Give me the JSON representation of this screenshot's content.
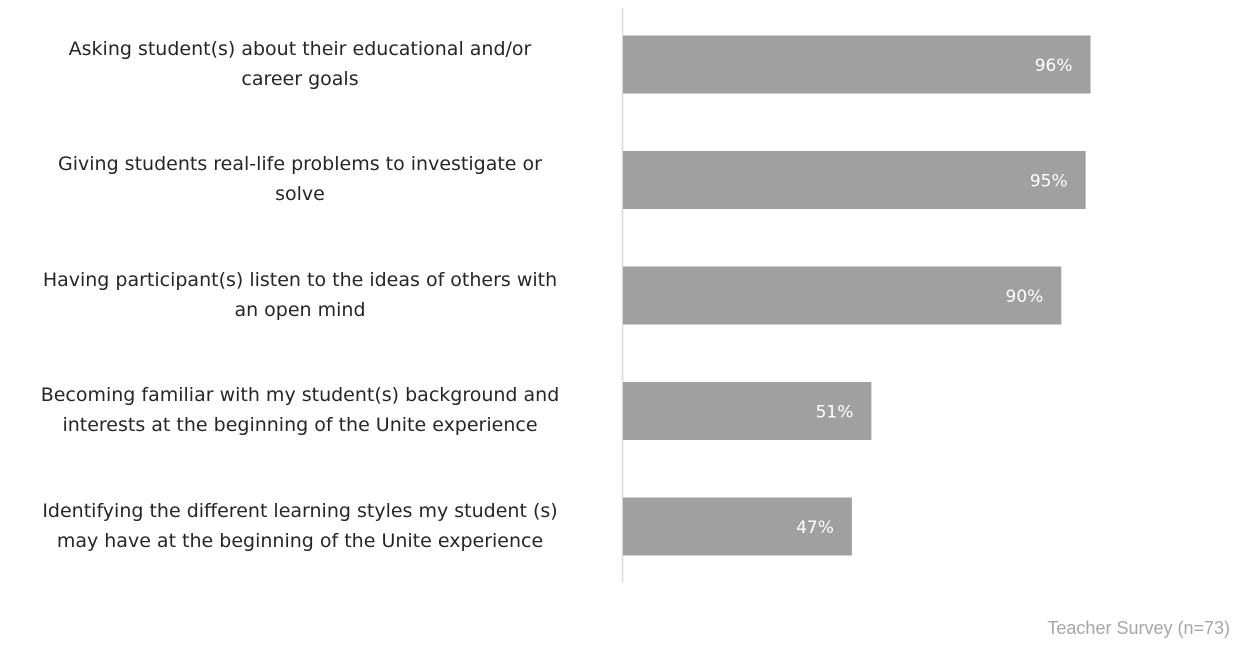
{
  "chart_data": {
    "type": "bar",
    "orientation": "horizontal",
    "categories": [
      "Asking student(s) about their educational and/or career goals",
      "Giving students real-life problems to investigate or solve",
      "Having participant(s) listen to the ideas of others with an open mind",
      "Becoming familiar with my student(s) background and interests at the beginning of the Unite experience",
      "Identifying the different learning styles my student (s) may have at the beginning of the Unite experience"
    ],
    "category_lines": [
      [
        "Asking student(s) about their educational and/or",
        "career goals"
      ],
      [
        "Giving students real-life problems to investigate or",
        "solve"
      ],
      [
        "Having participant(s) listen to the ideas of others with",
        "an open mind"
      ],
      [
        "Becoming familiar with my student(s) background and",
        "interests at the beginning of the Unite experience"
      ],
      [
        "Identifying the different learning styles my student (s)",
        "may have at the beginning of the Unite experience"
      ]
    ],
    "values": [
      96,
      95,
      90,
      51,
      47
    ],
    "data_labels": [
      "96%",
      "95%",
      "90%",
      "51%",
      "47%"
    ],
    "xlim": [
      0,
      100
    ],
    "grid": false,
    "bar_color": "#a0a0a0",
    "label_color": "#ffffff"
  },
  "footer": {
    "source": "Teacher Survey (n=73)"
  }
}
